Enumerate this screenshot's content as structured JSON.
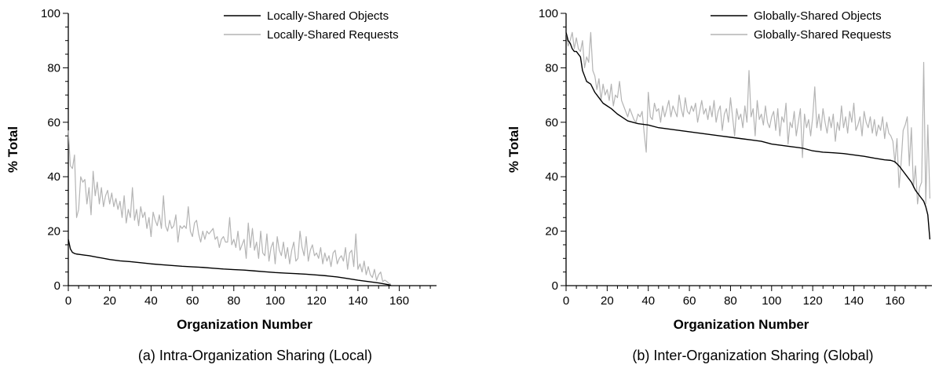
{
  "chart_data": [
    {
      "type": "line",
      "caption": "(a) Intra-Organization Sharing (Local)",
      "xlabel": "Organization Number",
      "ylabel": "% Total",
      "xlim": [
        0,
        178
      ],
      "ylim": [
        0,
        100
      ],
      "x_ticks": [
        0,
        20,
        40,
        60,
        80,
        100,
        120,
        140,
        160
      ],
      "y_ticks": [
        0,
        20,
        40,
        60,
        80,
        100
      ],
      "grid": false,
      "legend_position": "top-right",
      "series": [
        {
          "name": "Locally-Shared Objects",
          "color": "#000000",
          "x": [
            0,
            1,
            2,
            3,
            4,
            6,
            8,
            10,
            12,
            15,
            20,
            25,
            30,
            35,
            40,
            45,
            50,
            55,
            60,
            65,
            70,
            75,
            80,
            85,
            90,
            95,
            100,
            105,
            110,
            115,
            120,
            125,
            130,
            135,
            140,
            145,
            150,
            153,
            155,
            156
          ],
          "y": [
            17,
            13.5,
            12.2,
            11.8,
            11.6,
            11.4,
            11.2,
            11.0,
            10.7,
            10.3,
            9.6,
            9.1,
            8.8,
            8.4,
            8.0,
            7.7,
            7.4,
            7.1,
            6.9,
            6.7,
            6.4,
            6.1,
            5.9,
            5.7,
            5.4,
            5.1,
            4.8,
            4.6,
            4.4,
            4.2,
            3.9,
            3.6,
            3.2,
            2.6,
            2.0,
            1.5,
            1.0,
            0.6,
            0.3,
            0.1
          ]
        },
        {
          "name": "Locally-Shared Requests",
          "color": "#b4b4b4",
          "x": [
            0,
            1,
            2,
            3,
            4,
            5,
            6,
            7,
            8,
            9,
            10,
            11,
            12,
            13,
            14,
            15,
            16,
            17,
            18,
            19,
            20,
            21,
            22,
            23,
            24,
            25,
            26,
            27,
            28,
            29,
            30,
            31,
            32,
            33,
            34,
            35,
            36,
            37,
            38,
            39,
            40,
            41,
            42,
            43,
            44,
            45,
            46,
            47,
            48,
            49,
            50,
            51,
            52,
            53,
            54,
            55,
            56,
            57,
            58,
            59,
            60,
            61,
            62,
            63,
            64,
            65,
            66,
            67,
            68,
            69,
            70,
            71,
            72,
            73,
            74,
            75,
            76,
            77,
            78,
            79,
            80,
            81,
            82,
            83,
            84,
            85,
            86,
            87,
            88,
            89,
            90,
            91,
            92,
            93,
            94,
            95,
            96,
            97,
            98,
            99,
            100,
            101,
            102,
            103,
            104,
            105,
            106,
            107,
            108,
            109,
            110,
            111,
            112,
            113,
            114,
            115,
            116,
            117,
            118,
            119,
            120,
            121,
            122,
            123,
            124,
            125,
            126,
            127,
            128,
            129,
            130,
            131,
            132,
            133,
            134,
            135,
            136,
            137,
            138,
            139,
            140,
            141,
            142,
            143,
            144,
            145,
            146,
            147,
            148,
            149,
            150,
            151,
            152,
            153,
            154,
            155,
            156
          ],
          "y": [
            57,
            44,
            43,
            48,
            25,
            28,
            40,
            38,
            39,
            30,
            36,
            26,
            42,
            33,
            38,
            30,
            36,
            29,
            33,
            35,
            30,
            34,
            29,
            32,
            28,
            31,
            25,
            33,
            23,
            28,
            25,
            36,
            24,
            28,
            22,
            29,
            25,
            27,
            21,
            25,
            18,
            27,
            24,
            22,
            26,
            21,
            33,
            22,
            20,
            24,
            21,
            22,
            26,
            16,
            22,
            21,
            22,
            21,
            29,
            20,
            18,
            23,
            24,
            19,
            16,
            20,
            17,
            20,
            19,
            20,
            21,
            17,
            18,
            14,
            17,
            18,
            16,
            16,
            25,
            15,
            17,
            14,
            20,
            13,
            15,
            17,
            10,
            23,
            14,
            21,
            13,
            16,
            10,
            20,
            12,
            11,
            19,
            9,
            14,
            16,
            8,
            18,
            13,
            11,
            16,
            10,
            14,
            8,
            13,
            16,
            9,
            10,
            20,
            14,
            11,
            18,
            9,
            13,
            15,
            11,
            12,
            10,
            14,
            8,
            12,
            9,
            11,
            7,
            12,
            13,
            8,
            10,
            11,
            9,
            14,
            6,
            12,
            13,
            7,
            19,
            6,
            8,
            5,
            9,
            4,
            7,
            4,
            3,
            6,
            2,
            4,
            5,
            1.5,
            2,
            1.5,
            0.8,
            0.5
          ]
        }
      ]
    },
    {
      "type": "line",
      "caption": "(b) Inter-Organization Sharing (Global)",
      "xlabel": "Organization Number",
      "ylabel": "% Total",
      "xlim": [
        0,
        178
      ],
      "ylim": [
        0,
        100
      ],
      "x_ticks": [
        0,
        20,
        40,
        60,
        80,
        100,
        120,
        140,
        160
      ],
      "y_ticks": [
        0,
        20,
        40,
        60,
        80,
        100
      ],
      "grid": false,
      "legend_position": "top-right",
      "series": [
        {
          "name": "Globally-Shared Objects",
          "color": "#000000",
          "x": [
            0,
            1,
            2,
            3,
            4,
            5,
            6,
            7,
            8,
            9,
            10,
            12,
            14,
            16,
            18,
            20,
            22,
            25,
            28,
            30,
            35,
            40,
            45,
            50,
            55,
            60,
            65,
            70,
            75,
            80,
            85,
            90,
            95,
            100,
            105,
            110,
            115,
            120,
            125,
            130,
            135,
            140,
            145,
            150,
            155,
            158,
            160,
            162,
            164,
            166,
            168,
            170,
            172,
            174,
            175,
            176,
            177
          ],
          "y": [
            93,
            90,
            89,
            87,
            86,
            86,
            85,
            84,
            79,
            77,
            75,
            74,
            71,
            69,
            67,
            66,
            65,
            63,
            61.5,
            60.5,
            59.5,
            59,
            58,
            57.5,
            57,
            56.5,
            56,
            55.5,
            55,
            54.5,
            54,
            53.5,
            53,
            52,
            51.5,
            51,
            50.5,
            49.5,
            49,
            48.8,
            48.5,
            48,
            47.5,
            46.8,
            46.2,
            46,
            45.5,
            44,
            42,
            40,
            38,
            35,
            33,
            31,
            29,
            26,
            17
          ]
        },
        {
          "name": "Globally-Shared Requests",
          "color": "#b4b4b4",
          "x": [
            0,
            1,
            2,
            3,
            4,
            5,
            6,
            7,
            8,
            9,
            10,
            11,
            12,
            13,
            14,
            15,
            16,
            17,
            18,
            19,
            20,
            21,
            22,
            23,
            24,
            25,
            26,
            27,
            28,
            29,
            30,
            31,
            32,
            33,
            34,
            35,
            36,
            37,
            38,
            39,
            40,
            41,
            42,
            43,
            44,
            45,
            46,
            47,
            48,
            49,
            50,
            51,
            52,
            53,
            54,
            55,
            56,
            57,
            58,
            59,
            60,
            61,
            62,
            63,
            64,
            65,
            66,
            67,
            68,
            69,
            70,
            71,
            72,
            73,
            74,
            75,
            76,
            77,
            78,
            79,
            80,
            81,
            82,
            83,
            84,
            85,
            86,
            87,
            88,
            89,
            90,
            91,
            92,
            93,
            94,
            95,
            96,
            97,
            98,
            99,
            100,
            101,
            102,
            103,
            104,
            105,
            106,
            107,
            108,
            109,
            110,
            111,
            112,
            113,
            114,
            115,
            116,
            117,
            118,
            119,
            120,
            121,
            122,
            123,
            124,
            125,
            126,
            127,
            128,
            129,
            130,
            131,
            132,
            133,
            134,
            135,
            136,
            137,
            138,
            139,
            140,
            141,
            142,
            143,
            144,
            145,
            146,
            147,
            148,
            149,
            150,
            151,
            152,
            153,
            154,
            155,
            156,
            157,
            158,
            159,
            160,
            161,
            162,
            163,
            164,
            165,
            166,
            167,
            168,
            169,
            170,
            171,
            172,
            173,
            174,
            175,
            176,
            177
          ],
          "y": [
            93,
            88,
            90,
            93,
            87,
            91,
            87,
            86,
            90,
            80,
            84,
            82,
            93,
            79,
            77,
            72,
            76,
            68,
            74,
            70,
            72,
            68,
            74,
            66,
            70,
            69,
            75,
            68,
            66,
            64,
            62,
            65,
            63,
            61,
            60,
            63,
            62,
            64,
            56,
            49,
            71,
            62,
            61,
            67,
            64,
            65,
            60,
            66,
            62,
            65,
            68,
            62,
            66,
            64,
            62,
            70,
            65,
            62,
            69,
            64,
            63,
            66,
            64,
            67,
            60,
            64,
            68,
            63,
            65,
            61,
            66,
            62,
            68,
            60,
            64,
            66,
            57,
            63,
            65,
            60,
            69,
            62,
            55,
            65,
            61,
            63,
            58,
            66,
            60,
            79,
            62,
            65,
            55,
            68,
            61,
            63,
            59,
            66,
            60,
            58,
            62,
            64,
            57,
            65,
            55,
            62,
            60,
            67,
            52,
            60,
            58,
            64,
            55,
            60,
            65,
            47,
            63,
            58,
            61,
            55,
            62,
            73,
            58,
            63,
            57,
            65,
            60,
            56,
            62,
            58,
            63,
            53,
            60,
            57,
            66,
            58,
            62,
            56,
            64,
            60,
            67,
            57,
            59,
            62,
            55,
            64,
            60,
            58,
            62,
            56,
            61,
            55,
            59,
            57,
            62,
            54,
            60,
            56,
            55,
            53,
            45,
            54,
            36,
            45,
            57,
            59,
            62,
            44,
            58,
            36,
            44,
            30,
            36,
            38,
            82,
            30,
            59,
            32
          ]
        }
      ]
    }
  ]
}
